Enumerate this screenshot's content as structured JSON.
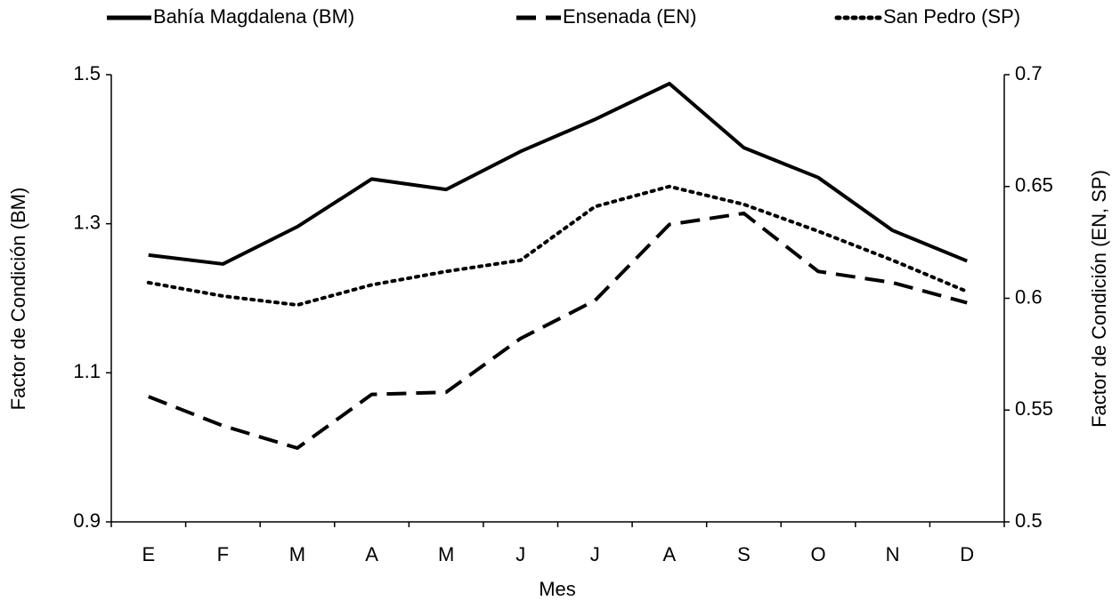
{
  "chart_data": {
    "type": "line",
    "xlabel": "Mes",
    "ylabel": "Factor de Condición (BM)",
    "y2label": "Factor de Condición (EN, SP)",
    "categories": [
      "E",
      "F",
      "M",
      "A",
      "M",
      "J",
      "J",
      "A",
      "S",
      "O",
      "N",
      "D"
    ],
    "series": [
      {
        "name": "Bahía Magdalena (BM)",
        "color": "#000000",
        "style": "solid",
        "values": [
          1.258,
          1.246,
          1.296,
          1.36,
          1.346,
          1.397,
          1.44,
          1.488,
          1.402,
          1.362,
          1.291,
          1.25
        ]
      },
      {
        "name": "Ensenada (EN)",
        "color": "#000000",
        "style": "dashed",
        "axis": "y2",
        "values": [
          0.556,
          0.543,
          0.533,
          0.557,
          0.558,
          0.582,
          0.599,
          0.633,
          0.638,
          0.612,
          0.607,
          0.598
        ]
      },
      {
        "name": "San Pedro (SP)",
        "color": "#000000",
        "style": "dotted",
        "axis": "y2",
        "values": [
          0.607,
          0.601,
          0.597,
          0.606,
          0.612,
          0.617,
          0.641,
          0.65,
          0.642,
          0.63,
          0.617,
          0.603
        ]
      }
    ],
    "ylim": [
      0.9,
      1.5
    ],
    "yticks": [
      0.9,
      1.1,
      1.3,
      1.5
    ],
    "y2lim": [
      0.5,
      0.7
    ],
    "y2ticks": [
      0.5,
      0.55,
      0.6,
      0.65,
      0.7
    ],
    "legend": "top",
    "grid": false
  }
}
